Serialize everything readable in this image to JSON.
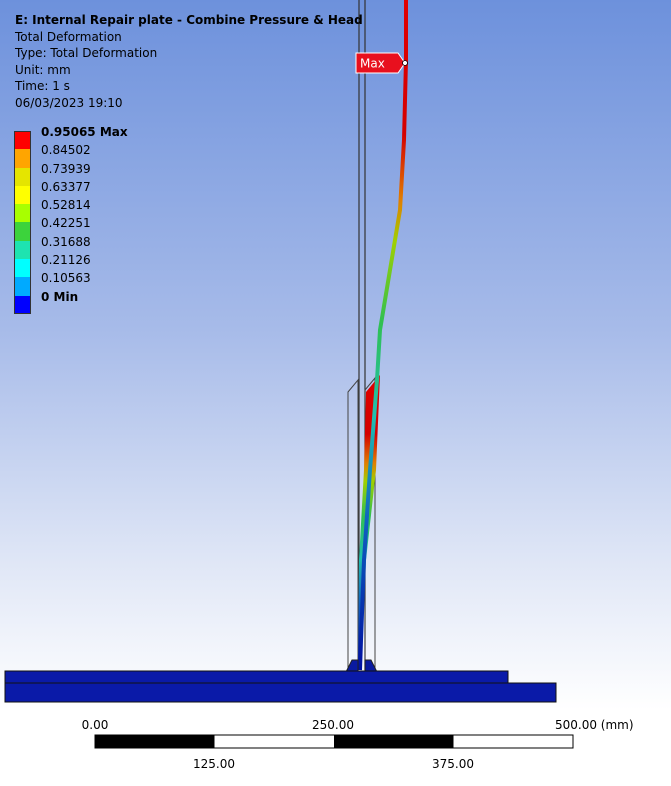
{
  "header": {
    "title": "E: Internal Repair plate - Combine Pressure & Head",
    "lines": [
      "Total Deformation",
      "Type: Total Deformation",
      "Unit: mm",
      "Time: 1 s",
      "06/03/2023 19:10"
    ]
  },
  "legend": {
    "entries": [
      {
        "label": "0.95065 Max",
        "color": "#ff0000"
      },
      {
        "label": "0.84502",
        "color": "#ffa500"
      },
      {
        "label": "0.73939",
        "color": "#e5e500"
      },
      {
        "label": "0.63377",
        "color": "#ffff00"
      },
      {
        "label": "0.52814",
        "color": "#a8ff00"
      },
      {
        "label": "0.42251",
        "color": "#3cd33c"
      },
      {
        "label": "0.31688",
        "color": "#1ee3b0"
      },
      {
        "label": "0.21126",
        "color": "#00ffff"
      },
      {
        "label": "0.10563",
        "color": "#00aaff"
      },
      {
        "label": "0 Min",
        "color": "#0000ff"
      }
    ]
  },
  "probe": {
    "label": "Max"
  },
  "scale_bar": {
    "top_labels": [
      "0.00",
      "250.00",
      "500.00 (mm)"
    ],
    "bottom_labels": [
      "125.00",
      "375.00"
    ]
  }
}
